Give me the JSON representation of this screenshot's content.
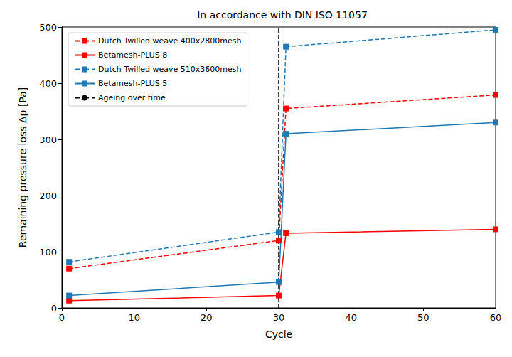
{
  "chart_data": {
    "type": "line",
    "title": "In accordance with DIN ISO 11057",
    "x_label": "Cycle",
    "y_label": "Remaining pressure loss Δp [Pa]",
    "xlim": [
      0,
      60
    ],
    "xticks": [
      0,
      10,
      20,
      30,
      40,
      50,
      60
    ],
    "ylim": [
      0,
      500
    ],
    "yticks": [
      0,
      100,
      200,
      300,
      400,
      500
    ],
    "grid": false,
    "legend": "upper left",
    "series": [
      {
        "name": "Dutch Twilled weave 400x2800mesh",
        "color": "#ff0000",
        "line_style": "dashed",
        "marker": "square",
        "x": [
          1,
          30,
          31,
          60
        ],
        "values": [
          70,
          120,
          355,
          379
        ]
      },
      {
        "name": "Betamesh-PLUS 8",
        "color": "#ff0000",
        "line_style": "solid",
        "marker": "square",
        "x": [
          1,
          30,
          31,
          60
        ],
        "values": [
          13,
          22,
          133,
          140
        ]
      },
      {
        "name": "Dutch Twilled weave 510x3600mesh",
        "color": "#1f77b4",
        "line_style": "dashed",
        "marker": "square",
        "x": [
          1,
          30,
          31,
          60
        ],
        "values": [
          82,
          135,
          465,
          495
        ]
      },
      {
        "name": "Betamesh-PLUS 5",
        "color": "#1f77b4",
        "line_style": "solid",
        "marker": "square",
        "x": [
          1,
          30,
          31,
          60
        ],
        "values": [
          22,
          46,
          310,
          330
        ]
      },
      {
        "name": "Ageing over time",
        "color": "#000000",
        "line_style": "dashed",
        "marker": "none",
        "x": [
          30,
          30
        ],
        "values": [
          0,
          500
        ]
      }
    ]
  }
}
